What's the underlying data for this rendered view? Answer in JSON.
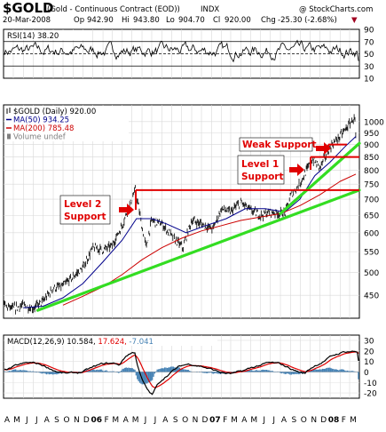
{
  "header": {
    "symbol": "$GOLD",
    "description": "(Gold - Continuous Contract (EOD))",
    "exchange": "INDX",
    "watermark": "@ StockCharts.com",
    "date": "20-Mar-2008",
    "open_label": "Op",
    "open": "942.90",
    "high_label": "Hi",
    "high": "943.80",
    "low_label": "Lo",
    "low": "904.70",
    "close_label": "Cl",
    "close": "920.00",
    "change_label": "Chg",
    "change": "-25.30 (-2.68%)",
    "change_marker": "▼"
  },
  "chart_data": [
    {
      "type": "line",
      "panel": "rsi",
      "label": "RSI(14) 38.20",
      "ylim": [
        10,
        90
      ],
      "yticks": [
        90,
        70,
        50,
        30,
        10
      ],
      "reference_lines": [
        70,
        50,
        30
      ],
      "latest_value": 38.2,
      "color": "#000000",
      "grid": true
    },
    {
      "type": "line",
      "panel": "price",
      "scale": "log",
      "ylim": [
        405,
        1080
      ],
      "yticks": [
        1000,
        950,
        900,
        850,
        800,
        750,
        700,
        650,
        600,
        550,
        500,
        450
      ],
      "grid": true,
      "legend": [
        {
          "label": "$GOLD (Daily) 920.00",
          "color": "#000000"
        },
        {
          "label": "MA(50) 934.25",
          "color": "#00008b"
        },
        {
          "label": "MA(200) 785.48",
          "color": "#cc0000"
        },
        {
          "label": "Volume undef",
          "color": "#808080"
        }
      ],
      "legend_position": "top-left",
      "series": [
        {
          "name": "$GOLD (Daily) 920.00",
          "color": "#000000",
          "x": [
            "2005-04-01",
            "2005-05-01",
            "2005-06-01",
            "2005-07-01",
            "2005-08-01",
            "2005-09-01",
            "2005-10-01",
            "2005-11-01",
            "2005-12-01",
            "2006-01-01",
            "2006-02-01",
            "2006-03-01",
            "2006-04-01",
            "2006-05-01",
            "2006-05-12",
            "2006-06-01",
            "2006-06-14",
            "2006-07-01",
            "2006-08-01",
            "2006-09-01",
            "2006-10-05",
            "2006-11-01",
            "2006-12-01",
            "2007-01-05",
            "2007-02-01",
            "2007-03-01",
            "2007-04-01",
            "2007-05-01",
            "2007-06-01",
            "2007-07-01",
            "2007-08-16",
            "2007-09-01",
            "2007-10-01",
            "2007-11-08",
            "2007-12-01",
            "2008-01-01",
            "2008-02-01",
            "2008-03-17",
            "2008-03-20"
          ],
          "y": [
            430,
            423,
            430,
            424,
            438,
            465,
            470,
            490,
            510,
            560,
            555,
            565,
            620,
            700,
            730,
            615,
            560,
            635,
            625,
            590,
            560,
            635,
            625,
            610,
            670,
            660,
            690,
            665,
            650,
            660,
            655,
            710,
            755,
            840,
            810,
            890,
            935,
            1020,
            920
          ]
        },
        {
          "name": "MA(50) 934.25",
          "color": "#00008b",
          "x": [
            "2005-06-01",
            "2005-08-01",
            "2005-10-01",
            "2005-12-01",
            "2006-02-01",
            "2006-04-01",
            "2006-05-15",
            "2006-07-01",
            "2006-08-15",
            "2006-10-15",
            "2006-12-15",
            "2007-02-15",
            "2007-04-15",
            "2007-06-15",
            "2007-08-15",
            "2007-09-30",
            "2007-11-15",
            "2008-01-01",
            "2008-02-15",
            "2008-03-20"
          ],
          "y": [
            425,
            428,
            445,
            475,
            525,
            580,
            640,
            640,
            625,
            600,
            620,
            640,
            670,
            670,
            660,
            700,
            780,
            830,
            890,
            934.25
          ]
        },
        {
          "name": "MA(200) 785.48",
          "color": "#cc0000",
          "x": [
            "2005-10-01",
            "2005-12-01",
            "2006-02-01",
            "2006-04-01",
            "2006-06-01",
            "2006-08-01",
            "2006-10-01",
            "2006-12-01",
            "2007-02-01",
            "2007-04-01",
            "2007-06-01",
            "2007-08-01",
            "2007-10-01",
            "2007-12-01",
            "2008-02-01",
            "2008-03-20"
          ],
          "y": [
            430,
            448,
            468,
            495,
            530,
            560,
            585,
            605,
            620,
            635,
            645,
            655,
            680,
            715,
            760,
            785.48
          ]
        }
      ],
      "annotations": [
        {
          "text_lines": [
            "Weak Support"
          ],
          "level": 900
        },
        {
          "text_lines": [
            "Level 1",
            "Support"
          ],
          "level": 850
        },
        {
          "text_lines": [
            "Level 2",
            "Support"
          ],
          "level": 730
        }
      ],
      "trendlines": [
        {
          "from": {
            "x": "2005-07-15",
            "y": 420
          },
          "to": {
            "x": "2008-03-31",
            "y": 730
          }
        },
        {
          "from": {
            "x": "2007-08-01",
            "y": 655
          },
          "to": {
            "x": "2008-03-31",
            "y": 905
          }
        }
      ]
    },
    {
      "type": "line",
      "panel": "macd",
      "label_parts": [
        {
          "text": "MACD(12,26,9)  10.584,",
          "color": "#000000"
        },
        {
          "text": " 17.624,",
          "color": "#e00000"
        },
        {
          "text": " -7.041",
          "color": "#4682b4"
        }
      ],
      "ylim": [
        -25,
        35
      ],
      "yticks": [
        30,
        20,
        10,
        0,
        -10,
        -20
      ],
      "series": [
        {
          "name": "MACD",
          "color": "#000000",
          "latest": 10.584
        },
        {
          "name": "Signal",
          "color": "#e00000",
          "latest": 17.624
        },
        {
          "name": "Histogram",
          "color": "#4682b4",
          "latest": -7.041
        }
      ],
      "grid": true
    }
  ],
  "xaxis": {
    "labels": [
      "A",
      "M",
      "J",
      "J",
      "A",
      "S",
      "O",
      "N",
      "D",
      "06",
      "F",
      "M",
      "A",
      "M",
      "J",
      "J",
      "A",
      "S",
      "O",
      "N",
      "D",
      "07",
      "F",
      "M",
      "A",
      "M",
      "J",
      "J",
      "A",
      "S",
      "O",
      "N",
      "D",
      "08",
      "F",
      "M"
    ]
  }
}
